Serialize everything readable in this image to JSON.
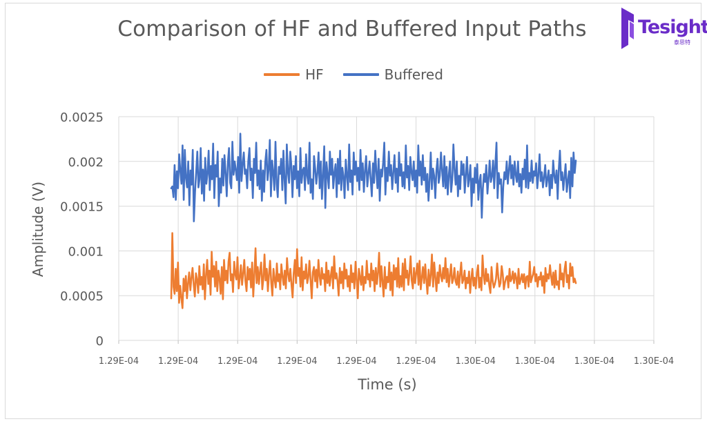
{
  "logo": {
    "name": "Tesight",
    "sub": "泰思特"
  },
  "chart_data": {
    "type": "line",
    "title": "Comparison of HF and Buffered Input Paths",
    "xlabel": "Time (s)",
    "ylabel": "Amplitude (V)",
    "ylim": [
      0,
      0.0025
    ],
    "yticks": [
      "0",
      "0.0005",
      "0.001",
      "0.0015",
      "0.002",
      "0.0025"
    ],
    "xticks": [
      "1.29E-04",
      "1.29E-04",
      "1.29E-04",
      "1.29E-04",
      "1.29E-04",
      "1.29E-04",
      "1.30E-04",
      "1.30E-04",
      "1.30E-04",
      "1.30E-04"
    ],
    "grid": "vertical and horizontal major gridlines",
    "legend_position": "top",
    "series": [
      {
        "name": "HF",
        "color": "#ED7D31",
        "values": [
          0.00047,
          0.0012,
          0.0006,
          0.00052,
          0.0008,
          0.00055,
          0.00087,
          0.00042,
          0.00061,
          0.00048,
          0.00036,
          0.00069,
          0.00055,
          0.00072,
          0.00047,
          0.00064,
          0.00076,
          0.00056,
          0.0007,
          0.00081,
          0.00062,
          0.00049,
          0.00075,
          0.00068,
          0.00053,
          0.00083,
          0.00062,
          0.00071,
          0.00057,
          0.00085,
          0.00046,
          0.00074,
          0.0009,
          0.00063,
          0.00078,
          0.00051,
          0.00099,
          0.00071,
          0.00083,
          0.0006,
          0.00088,
          0.00055,
          0.00078,
          0.00069,
          0.00052,
          0.00082,
          0.00046,
          0.0009,
          0.00067,
          0.00078,
          0.00064,
          0.00088,
          0.00098,
          0.00067,
          0.00074,
          0.00054,
          0.00088,
          0.00074,
          0.00068,
          0.00093,
          0.00058,
          0.0007,
          0.00084,
          0.00062,
          0.00075,
          0.0009,
          0.00067,
          0.00055,
          0.00082,
          0.00068,
          0.0008,
          0.00059,
          0.00087,
          0.00049,
          0.00075,
          0.00103,
          0.00064,
          0.00082,
          0.00063,
          0.00077,
          0.00087,
          0.00057,
          0.00069,
          0.00096,
          0.00067,
          0.0008,
          0.00055,
          0.00074,
          0.00089,
          0.00064,
          0.0005,
          0.0008,
          0.00068,
          0.00059,
          0.00086,
          0.00066,
          0.00074,
          0.00057,
          0.00085,
          0.00072,
          0.00062,
          0.00078,
          0.00058,
          0.00092,
          0.00074,
          0.00066,
          0.0008,
          0.00062,
          0.00048,
          0.00075,
          0.0009,
          0.00064,
          0.00102,
          0.00072,
          0.00081,
          0.0006,
          0.00093,
          0.00056,
          0.00077,
          0.00069,
          0.00085,
          0.00064,
          0.00071,
          0.00089,
          0.00068,
          0.00047,
          0.00076,
          0.00082,
          0.00066,
          0.00079,
          0.00059,
          0.0009,
          0.00072,
          0.00062,
          0.00081,
          0.00069,
          0.00074,
          0.00055,
          0.00087,
          0.00064,
          0.00078,
          0.00061,
          0.00072,
          0.00082,
          0.00058,
          0.00094,
          0.00069,
          0.00075,
          0.00066,
          0.0005,
          0.00081,
          0.00064,
          0.00077,
          0.00058,
          0.00086,
          0.00069,
          0.00079,
          0.0006,
          0.00072,
          0.00055,
          0.00084,
          0.00065,
          0.00075,
          0.00058,
          0.00088,
          0.00067,
          0.00047,
          0.0008,
          0.0007,
          0.00062,
          0.00083,
          0.00056,
          0.00071,
          0.00064,
          0.00089,
          0.00068,
          0.00074,
          0.0006,
          0.00086,
          0.00067,
          0.00078,
          0.00055,
          0.00081,
          0.00063,
          0.00076,
          0.00098,
          0.0006,
          0.00083,
          0.00066,
          0.00049,
          0.00082,
          0.00058,
          0.00071,
          0.00065,
          0.00087,
          0.00056,
          0.00076,
          0.0005,
          0.00084,
          0.00068,
          0.00081,
          0.0006,
          0.00092,
          0.00059,
          0.00072,
          0.0006,
          0.00086,
          0.00056,
          0.00091,
          0.0007,
          0.00078,
          0.00062,
          0.00075,
          0.00094,
          0.00067,
          0.00058,
          0.00081,
          0.00064,
          0.00076,
          0.00086,
          0.00062,
          0.00089,
          0.00057,
          0.0007,
          0.00082,
          0.00064,
          0.00085,
          0.00068,
          0.00052,
          0.00079,
          0.00061,
          0.00073,
          0.00096,
          0.0006,
          0.00087,
          0.00071,
          0.00055,
          0.00076,
          0.00064,
          0.00084,
          0.00072,
          0.00066,
          0.00081,
          0.00069,
          0.00092,
          0.00065,
          0.0008,
          0.0006,
          0.00073,
          0.00085,
          0.00064,
          0.00069,
          0.00081,
          0.00066,
          0.00062,
          0.00077,
          0.00059,
          0.00073,
          0.00087,
          0.00064,
          0.00068,
          0.00078,
          0.00058,
          0.0007,
          0.00064,
          0.00077,
          0.00053,
          0.00069,
          0.0008,
          0.00061,
          0.0007,
          0.00058,
          0.00076,
          0.00084,
          0.00059,
          0.0007,
          0.00056,
          0.00095,
          0.00073,
          0.00063,
          0.0008,
          0.00066,
          0.00074,
          0.00061,
          0.00053,
          0.00082,
          0.00067,
          0.00059,
          0.00063,
          0.00069,
          0.00086,
          0.00071,
          0.0006,
          0.00064,
          0.00083,
          0.00074,
          0.00057,
          0.00065,
          0.0007,
          0.00072,
          0.00059,
          0.0008,
          0.00066,
          0.00069,
          0.00077,
          0.00064,
          0.00075,
          0.0007,
          0.00058,
          0.0008,
          0.00063,
          0.00068,
          0.00074,
          0.00065,
          0.00074,
          0.00058,
          0.00071,
          0.00072,
          0.0006,
          0.00088,
          0.00065,
          0.0007,
          0.00074,
          0.00082,
          0.00066,
          0.00074,
          0.0006,
          0.00071,
          0.00068,
          0.00076,
          0.00061,
          0.00072,
          0.00053,
          0.00081,
          0.00066,
          0.00074,
          0.00069,
          0.00084,
          0.00072,
          0.00062,
          0.00076,
          0.00059,
          0.00078,
          0.00062,
          0.00066,
          0.00057,
          0.00085,
          0.00068,
          0.00075,
          0.0006,
          0.00079,
          0.00088,
          0.00065,
          0.00073,
          0.00058,
          0.00086,
          0.00072,
          0.00082,
          0.00065,
          0.00069,
          0.00064
        ]
      },
      {
        "name": "Buffered",
        "color": "#4472C4",
        "values": [
          0.0017,
          0.00172,
          0.0016,
          0.00196,
          0.00157,
          0.00189,
          0.0017,
          0.00208,
          0.0019,
          0.00175,
          0.00218,
          0.00157,
          0.00213,
          0.00182,
          0.00171,
          0.002,
          0.00151,
          0.0019,
          0.00174,
          0.00213,
          0.00133,
          0.00166,
          0.00187,
          0.00211,
          0.00171,
          0.0018,
          0.00215,
          0.00164,
          0.00191,
          0.00156,
          0.00204,
          0.00175,
          0.00186,
          0.00212,
          0.00168,
          0.00195,
          0.0018,
          0.0022,
          0.00159,
          0.00196,
          0.00183,
          0.00211,
          0.0015,
          0.00181,
          0.00165,
          0.00203,
          0.00173,
          0.00207,
          0.00187,
          0.00161,
          0.00199,
          0.00215,
          0.00176,
          0.0017,
          0.00222,
          0.00185,
          0.002,
          0.0019,
          0.00179,
          0.00205,
          0.00165,
          0.00231,
          0.00178,
          0.00196,
          0.0021,
          0.00186,
          0.00191,
          0.0017,
          0.002,
          0.00215,
          0.00179,
          0.00192,
          0.00159,
          0.00203,
          0.00187,
          0.00221,
          0.00173,
          0.0019,
          0.00169,
          0.00201,
          0.00156,
          0.0019,
          0.00166,
          0.00199,
          0.00213,
          0.00179,
          0.00192,
          0.00224,
          0.00161,
          0.00201,
          0.00188,
          0.00168,
          0.00222,
          0.00175,
          0.0016,
          0.00194,
          0.00186,
          0.00203,
          0.00168,
          0.00212,
          0.0018,
          0.00153,
          0.00219,
          0.00188,
          0.00176,
          0.00211,
          0.00195,
          0.0016,
          0.00195,
          0.0018,
          0.00206,
          0.0017,
          0.00189,
          0.00161,
          0.00215,
          0.00176,
          0.0019,
          0.00193,
          0.00168,
          0.00208,
          0.00184,
          0.00175,
          0.00221,
          0.00165,
          0.0018,
          0.00158,
          0.00206,
          0.00192,
          0.00175,
          0.00187,
          0.0021,
          0.0017,
          0.002,
          0.00158,
          0.00186,
          0.00217,
          0.00148,
          0.00199,
          0.00185,
          0.0017,
          0.00211,
          0.00185,
          0.00203,
          0.0017,
          0.00188,
          0.00197,
          0.0016,
          0.00203,
          0.00175,
          0.00212,
          0.00168,
          0.00193,
          0.00183,
          0.00159,
          0.00202,
          0.00185,
          0.00168,
          0.00219,
          0.00177,
          0.0019,
          0.00163,
          0.0021,
          0.00185,
          0.002,
          0.00178,
          0.00193,
          0.00168,
          0.00213,
          0.00179,
          0.00198,
          0.00166,
          0.0019,
          0.00206,
          0.00172,
          0.00186,
          0.002,
          0.0018,
          0.00161,
          0.00198,
          0.00176,
          0.00212,
          0.00188,
          0.0017,
          0.00203,
          0.00156,
          0.00191,
          0.00183,
          0.00199,
          0.00221,
          0.00163,
          0.00193,
          0.00178,
          0.00211,
          0.00184,
          0.00196,
          0.00169,
          0.00188,
          0.00207,
          0.00176,
          0.00192,
          0.00166,
          0.0021,
          0.00184,
          0.00197,
          0.00172,
          0.00188,
          0.0017,
          0.00218,
          0.00182,
          0.00195,
          0.00168,
          0.00205,
          0.00188,
          0.00179,
          0.002,
          0.00172,
          0.0019,
          0.00165,
          0.00218,
          0.00184,
          0.002,
          0.00174,
          0.00207,
          0.00179,
          0.00193,
          0.00166,
          0.00186,
          0.00156,
          0.0018,
          0.0021,
          0.00169,
          0.00192,
          0.00184,
          0.00159,
          0.0019,
          0.00203,
          0.00176,
          0.00184,
          0.0021,
          0.0019,
          0.00172,
          0.00206,
          0.0017,
          0.00194,
          0.00163,
          0.00186,
          0.002,
          0.00166,
          0.0018,
          0.00219,
          0.0019,
          0.00174,
          0.002,
          0.00161,
          0.00184,
          0.00169,
          0.002,
          0.00185,
          0.00197,
          0.00165,
          0.00186,
          0.00205,
          0.00172,
          0.00182,
          0.00196,
          0.0015,
          0.00181,
          0.00165,
          0.00193,
          0.00176,
          0.00197,
          0.00157,
          0.00178,
          0.00185,
          0.00137,
          0.0017,
          0.00186,
          0.00177,
          0.00196,
          0.00164,
          0.00181,
          0.00201,
          0.00177,
          0.00183,
          0.00201,
          0.0017,
          0.00197,
          0.00221,
          0.00159,
          0.00187,
          0.00175,
          0.0018,
          0.00143,
          0.00172,
          0.00188,
          0.0018,
          0.002,
          0.00175,
          0.00191,
          0.00206,
          0.00181,
          0.00196,
          0.00174,
          0.002,
          0.00185,
          0.00177,
          0.002,
          0.00172,
          0.00186,
          0.00165,
          0.00192,
          0.0018,
          0.00202,
          0.00171,
          0.00218,
          0.0017,
          0.00187,
          0.00178,
          0.00201,
          0.00176,
          0.00189,
          0.00184,
          0.00198,
          0.0017,
          0.00185,
          0.00208,
          0.00178,
          0.00188,
          0.00171,
          0.00182,
          0.00196,
          0.00172,
          0.00181,
          0.0019,
          0.00162,
          0.00185,
          0.0017,
          0.00201,
          0.00184,
          0.00176,
          0.0019,
          0.00158,
          0.00192,
          0.00212,
          0.00179,
          0.00188,
          0.00168,
          0.00183,
          0.00197,
          0.00166,
          0.00178,
          0.00189,
          0.00159,
          0.00204,
          0.00172,
          0.0021,
          0.00187,
          0.00201
        ]
      }
    ]
  }
}
